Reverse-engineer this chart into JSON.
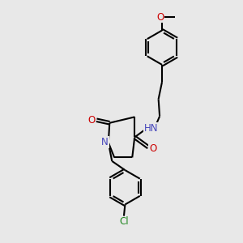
{
  "background_color": "#e8e8e8",
  "bond_color": "#000000",
  "bond_width": 1.5,
  "atom_colors": {
    "N": "#4444bb",
    "O": "#cc0000",
    "Cl": "#228822",
    "C": "#000000"
  },
  "font_size": 8.0,
  "xlim": [
    0,
    10
  ],
  "ylim": [
    0,
    10
  ]
}
